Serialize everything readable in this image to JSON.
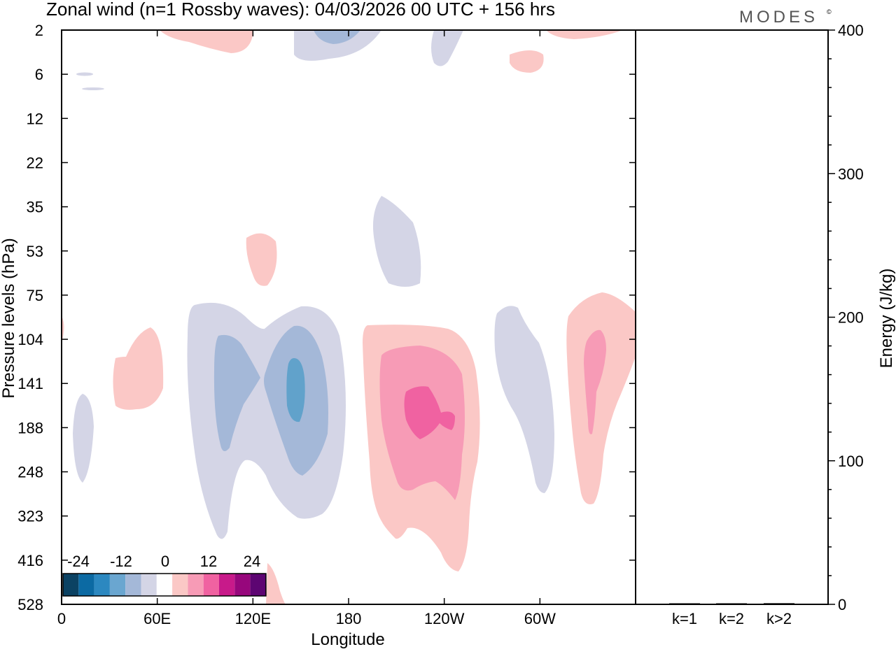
{
  "header": {
    "title": "Zonal wind (n=1 Rossby waves):  04/03/2026  00 UTC  + 156 hrs",
    "brand": "MODES",
    "brand_mark": "©"
  },
  "colors": {
    "neg_light": "#d4d5e6",
    "neg_mid": "#a4b8d8",
    "neg_strong": "#61a2cb",
    "pos_light": "#fbc8c6",
    "pos_mid": "#f79bb6",
    "pos_strong": "#f062a1",
    "axis": "#000000"
  },
  "chart_data": [
    {
      "type": "heatmap",
      "title": "Zonal wind (n=1 Rossby waves)",
      "xlabel": "Longitude",
      "ylabel": "Pressure levels (hPa)",
      "x_ticks": [
        "0",
        "60E",
        "120E",
        "180",
        "120W",
        "60W"
      ],
      "x_tick_degrees": [
        0,
        60,
        120,
        180,
        240,
        300
      ],
      "x_range_degrees": [
        0,
        360
      ],
      "y_ticks": [
        "2",
        "6",
        "12",
        "22",
        "35",
        "53",
        "75",
        "104",
        "141",
        "188",
        "248",
        "323",
        "416",
        "528"
      ],
      "colorbar": {
        "tick_labels": [
          "-24",
          "-12",
          "0",
          "12",
          "24"
        ],
        "levels": [
          -30,
          -25,
          -20,
          -15,
          -10,
          -5,
          5,
          10,
          15,
          20,
          25,
          30
        ],
        "colors": [
          "#0b4263",
          "#0c6aa3",
          "#2c88c0",
          "#6aa6d0",
          "#a4b8d8",
          "#d4d5e6",
          "#ffffff",
          "#fbc8c6",
          "#f79bb6",
          "#f062a1",
          "#c81a8a",
          "#97077c",
          "#5d0572"
        ]
      },
      "features": [
        {
          "sign": "negative",
          "lon_center": 100,
          "pressure_range_hPa": [
            75,
            416
          ],
          "peak": -10
        },
        {
          "sign": "negative",
          "lon_center": 145,
          "pressure_range_hPa": [
            104,
            248
          ],
          "peak": -15
        },
        {
          "sign": "positive",
          "lon_center": 215,
          "pressure_range_hPa": [
            104,
            416
          ],
          "peak": 15
        },
        {
          "sign": "negative",
          "lon_center": 288,
          "pressure_range_hPa": [
            75,
            323
          ],
          "peak": -5
        },
        {
          "sign": "positive",
          "lon_center": 337,
          "pressure_range_hPa": [
            75,
            323
          ],
          "peak": 10
        },
        {
          "sign": "negative",
          "lon_center": 210,
          "pressure_range_hPa": [
            35,
            75
          ],
          "peak": -5
        },
        {
          "sign": "positive",
          "lon_center": 128,
          "pressure_range_hPa": [
            53,
            75
          ],
          "peak": 5
        },
        {
          "sign": "positive",
          "lon_center": 40,
          "pressure_range_hPa": [
            104,
            188
          ],
          "peak": 5
        }
      ]
    },
    {
      "type": "bar",
      "title": "Energy",
      "categories": [
        "k=1",
        "k=2",
        "k>2"
      ],
      "values": [
        0.5,
        0.5,
        0.8
      ],
      "ylabel": "Energy (J/kg)",
      "ylim": [
        0,
        400
      ],
      "y_ticks": [
        "0",
        "100",
        "200",
        "300",
        "400"
      ]
    }
  ]
}
